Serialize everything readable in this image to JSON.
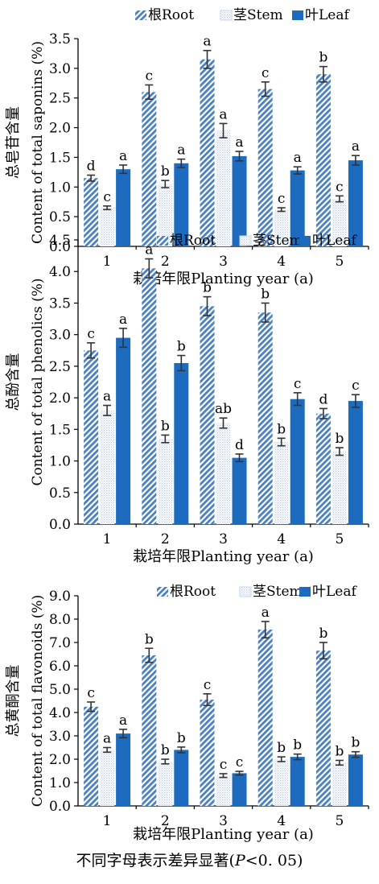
{
  "footnote": {
    "prefix": "不同字母表示差异显著(",
    "p": "P",
    "suffix": "<0. 05)"
  },
  "legend": [
    "根Root",
    "茎Stem",
    "叶Leaf"
  ],
  "colors": {
    "root": "#4a7fc1",
    "stem": "#c9d7ea",
    "leaf": "#1d6bbf",
    "error": "#333333",
    "axis": "#000000"
  },
  "chart_data": [
    {
      "type": "bar",
      "ylabel": "总皂苷含量\nContent of total saponins (%)",
      "xlabel": "栽培年限Planting year (a)",
      "ylim": [
        0,
        3.5
      ],
      "yticks": [
        0.0,
        0.5,
        1.0,
        1.5,
        2.0,
        2.5,
        3.0,
        3.5
      ],
      "ytick_format": 1,
      "legend_position": "top",
      "categories": [
        "1",
        "2",
        "3",
        "4",
        "5"
      ],
      "series": [
        {
          "name": "根Root",
          "values": [
            1.15,
            2.6,
            3.15,
            2.65,
            2.9
          ],
          "errors": [
            0.05,
            0.12,
            0.15,
            0.12,
            0.13
          ],
          "letters": [
            "d",
            "c",
            "a",
            "c",
            "b"
          ]
        },
        {
          "name": "茎Stem",
          "values": [
            0.65,
            1.05,
            1.95,
            0.62,
            0.8
          ],
          "errors": [
            0.03,
            0.06,
            0.12,
            0.03,
            0.05
          ],
          "letters": [
            "c",
            "b",
            "a",
            "c",
            "c"
          ]
        },
        {
          "name": "叶Leaf",
          "values": [
            1.3,
            1.4,
            1.52,
            1.28,
            1.45
          ],
          "errors": [
            0.07,
            0.07,
            0.08,
            0.06,
            0.08
          ],
          "letters": [
            "a",
            "a",
            "a",
            "a",
            "a"
          ]
        }
      ]
    },
    {
      "type": "bar",
      "ylabel": "总酚含量\nContent of total phenolics (%)",
      "xlabel": "栽培年限Planting year (a)",
      "ylim": [
        0,
        4.5
      ],
      "yticks": [
        0.0,
        0.5,
        1.0,
        1.5,
        2.0,
        2.5,
        3.0,
        3.5,
        4.0,
        4.5
      ],
      "ytick_format": 1,
      "legend_position": "top",
      "categories": [
        "1",
        "2",
        "3",
        "4",
        "5"
      ],
      "series": [
        {
          "name": "根Root",
          "values": [
            2.75,
            4.05,
            3.45,
            3.35,
            1.75
          ],
          "errors": [
            0.12,
            0.15,
            0.15,
            0.15,
            0.08
          ],
          "letters": [
            "c",
            "a",
            "b",
            "b",
            "d"
          ]
        },
        {
          "name": "茎Stem",
          "values": [
            1.8,
            1.35,
            1.6,
            1.3,
            1.15
          ],
          "errors": [
            0.08,
            0.06,
            0.08,
            0.06,
            0.06
          ],
          "letters": [
            "a",
            "b",
            "ab",
            "b",
            "b"
          ]
        },
        {
          "name": "叶Leaf",
          "values": [
            2.95,
            2.55,
            1.05,
            1.98,
            1.95
          ],
          "errors": [
            0.15,
            0.12,
            0.06,
            0.1,
            0.1
          ],
          "letters": [
            "a",
            "b",
            "d",
            "c",
            "c"
          ]
        }
      ]
    },
    {
      "type": "bar",
      "ylabel": "总黄酮含量\nContent of total flavonoids (%)",
      "xlabel": "栽培年限Planting year (a)",
      "ylim": [
        0,
        9.0
      ],
      "yticks": [
        0.0,
        1.0,
        2.0,
        3.0,
        4.0,
        5.0,
        6.0,
        7.0,
        8.0,
        9.0
      ],
      "ytick_format": 1,
      "legend_position": "top",
      "categories": [
        "1",
        "2",
        "3",
        "4",
        "5"
      ],
      "series": [
        {
          "name": "根Root",
          "values": [
            4.25,
            6.45,
            4.55,
            7.55,
            6.65
          ],
          "errors": [
            0.2,
            0.3,
            0.25,
            0.35,
            0.35
          ],
          "letters": [
            "c",
            "b",
            "c",
            "a",
            "b"
          ]
        },
        {
          "name": "茎Stem",
          "values": [
            2.4,
            1.9,
            1.3,
            2.0,
            1.85
          ],
          "errors": [
            0.1,
            0.1,
            0.08,
            0.1,
            0.1
          ],
          "letters": [
            "a",
            "b",
            "c",
            "b",
            "b"
          ]
        },
        {
          "name": "叶Leaf",
          "values": [
            3.1,
            2.4,
            1.4,
            2.1,
            2.2
          ],
          "errors": [
            0.18,
            0.12,
            0.08,
            0.12,
            0.12
          ],
          "letters": [
            "a",
            "b",
            "c",
            "b",
            "b"
          ]
        }
      ]
    }
  ]
}
